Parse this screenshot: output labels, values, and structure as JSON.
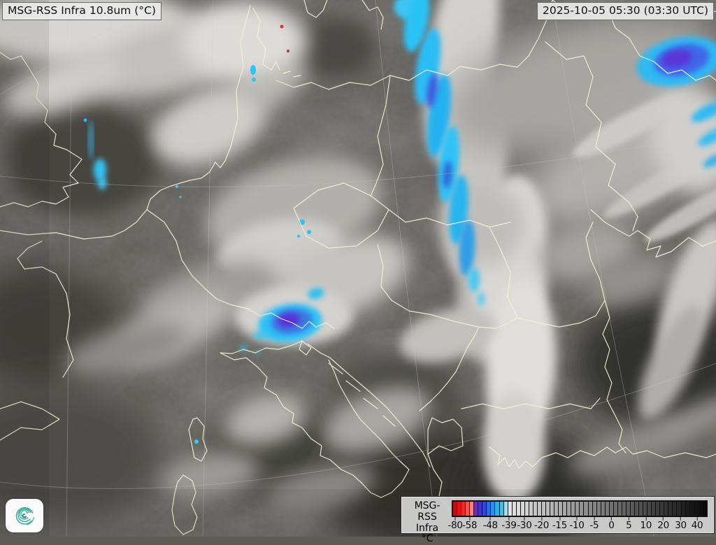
{
  "header": {
    "product_label": "MSG-RSS Infra 10.8um (°C)",
    "timestamp_label": "2025-10-05 05:30 (03:30 UTC)"
  },
  "legend": {
    "source": "MSG-RSS",
    "channel": "Infra",
    "unit": "°C",
    "ticks": [
      {
        "label": "-80",
        "pos": 1.4
      },
      {
        "label": "-58",
        "pos": 7.0
      },
      {
        "label": "-48",
        "pos": 15.1
      },
      {
        "label": "-39",
        "pos": 22.4
      },
      {
        "label": "-30",
        "pos": 28.4
      },
      {
        "label": "-20",
        "pos": 35.1
      },
      {
        "label": "-15",
        "pos": 42.2
      },
      {
        "label": "-10",
        "pos": 48.9
      },
      {
        "label": "-5",
        "pos": 55.7
      },
      {
        "label": "0",
        "pos": 62.4
      },
      {
        "label": "5",
        "pos": 69.2
      },
      {
        "label": "10",
        "pos": 75.9
      },
      {
        "label": "20",
        "pos": 82.7
      },
      {
        "label": "30",
        "pos": 89.5
      },
      {
        "label": "40",
        "pos": 95.9
      }
    ],
    "segments": [
      "#c00d12",
      "#e01418",
      "#ee2828",
      "#f05454",
      "#f48080",
      "#6b2fb0",
      "#4634c4",
      "#3348d2",
      "#2e6ae0",
      "#2b8fee",
      "#23b4f8",
      "#17d0fc",
      "#86e7fd",
      "#e4e4e4",
      "#dfdfdf",
      "#dadada",
      "#d6d6d6",
      "#d1d1d1",
      "#cccccc",
      "#c7c7c7",
      "#c3c3c3",
      "#bebebe",
      "#b9b9b9",
      "#b4b4b4",
      "#b0b0b0",
      "#ababab",
      "#a6a6a6",
      "#a1a1a1",
      "#9d9d9d",
      "#989898",
      "#939393",
      "#8e8e8e",
      "#8a8a8a",
      "#858585",
      "#808080",
      "#7b7b7b",
      "#777777",
      "#727272",
      "#6d6d6d",
      "#686868",
      "#646464",
      "#5f5f5f",
      "#5a5a5a",
      "#555555",
      "#515151",
      "#4c4c4c",
      "#474747",
      "#424242",
      "#3e3e3e",
      "#393939",
      "#343434",
      "#2f2f2f",
      "#2b2b2b",
      "#262626",
      "#212121",
      "#1c1c1c",
      "#181818",
      "#131313",
      "#0e0e0e",
      "#0a0a0a"
    ]
  },
  "colors": {
    "cold_cyan": "#2cc3f5",
    "cold_blue": "#3b5ce0",
    "cold_purple": "#5a2fd6",
    "overshoot_red": "#e03030",
    "border_line": "#f3efd7",
    "panel_bg": "#cecece",
    "label_bg": "#e9e9e9"
  },
  "logo": {
    "icon": "spiral-cyclone"
  }
}
